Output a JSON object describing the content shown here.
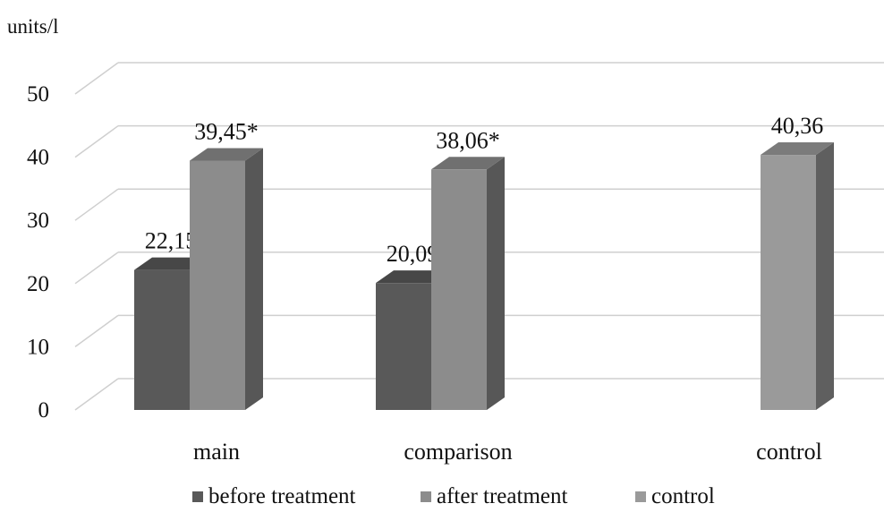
{
  "chart_data": {
    "type": "bar",
    "ylabel": "units/l",
    "ylim": [
      0,
      50
    ],
    "yticks": [
      0,
      10,
      20,
      30,
      40,
      50
    ],
    "grid": true,
    "legend_position": "bottom",
    "categories": [
      "main",
      "comparison",
      "control"
    ],
    "series": [
      {
        "name": "before treatment",
        "color": "#595959",
        "values": [
          22.15,
          20.09,
          null
        ],
        "labels": [
          "22,15",
          "20,09",
          ""
        ]
      },
      {
        "name": "after treatment",
        "color": "#8c8c8c",
        "values": [
          39.45,
          38.06,
          null
        ],
        "labels": [
          "39,45*",
          "38,06*",
          ""
        ]
      },
      {
        "name": "control",
        "color": "#9a9a9a",
        "values": [
          null,
          null,
          40.36
        ],
        "labels": [
          "",
          "",
          "40,36"
        ]
      }
    ]
  }
}
